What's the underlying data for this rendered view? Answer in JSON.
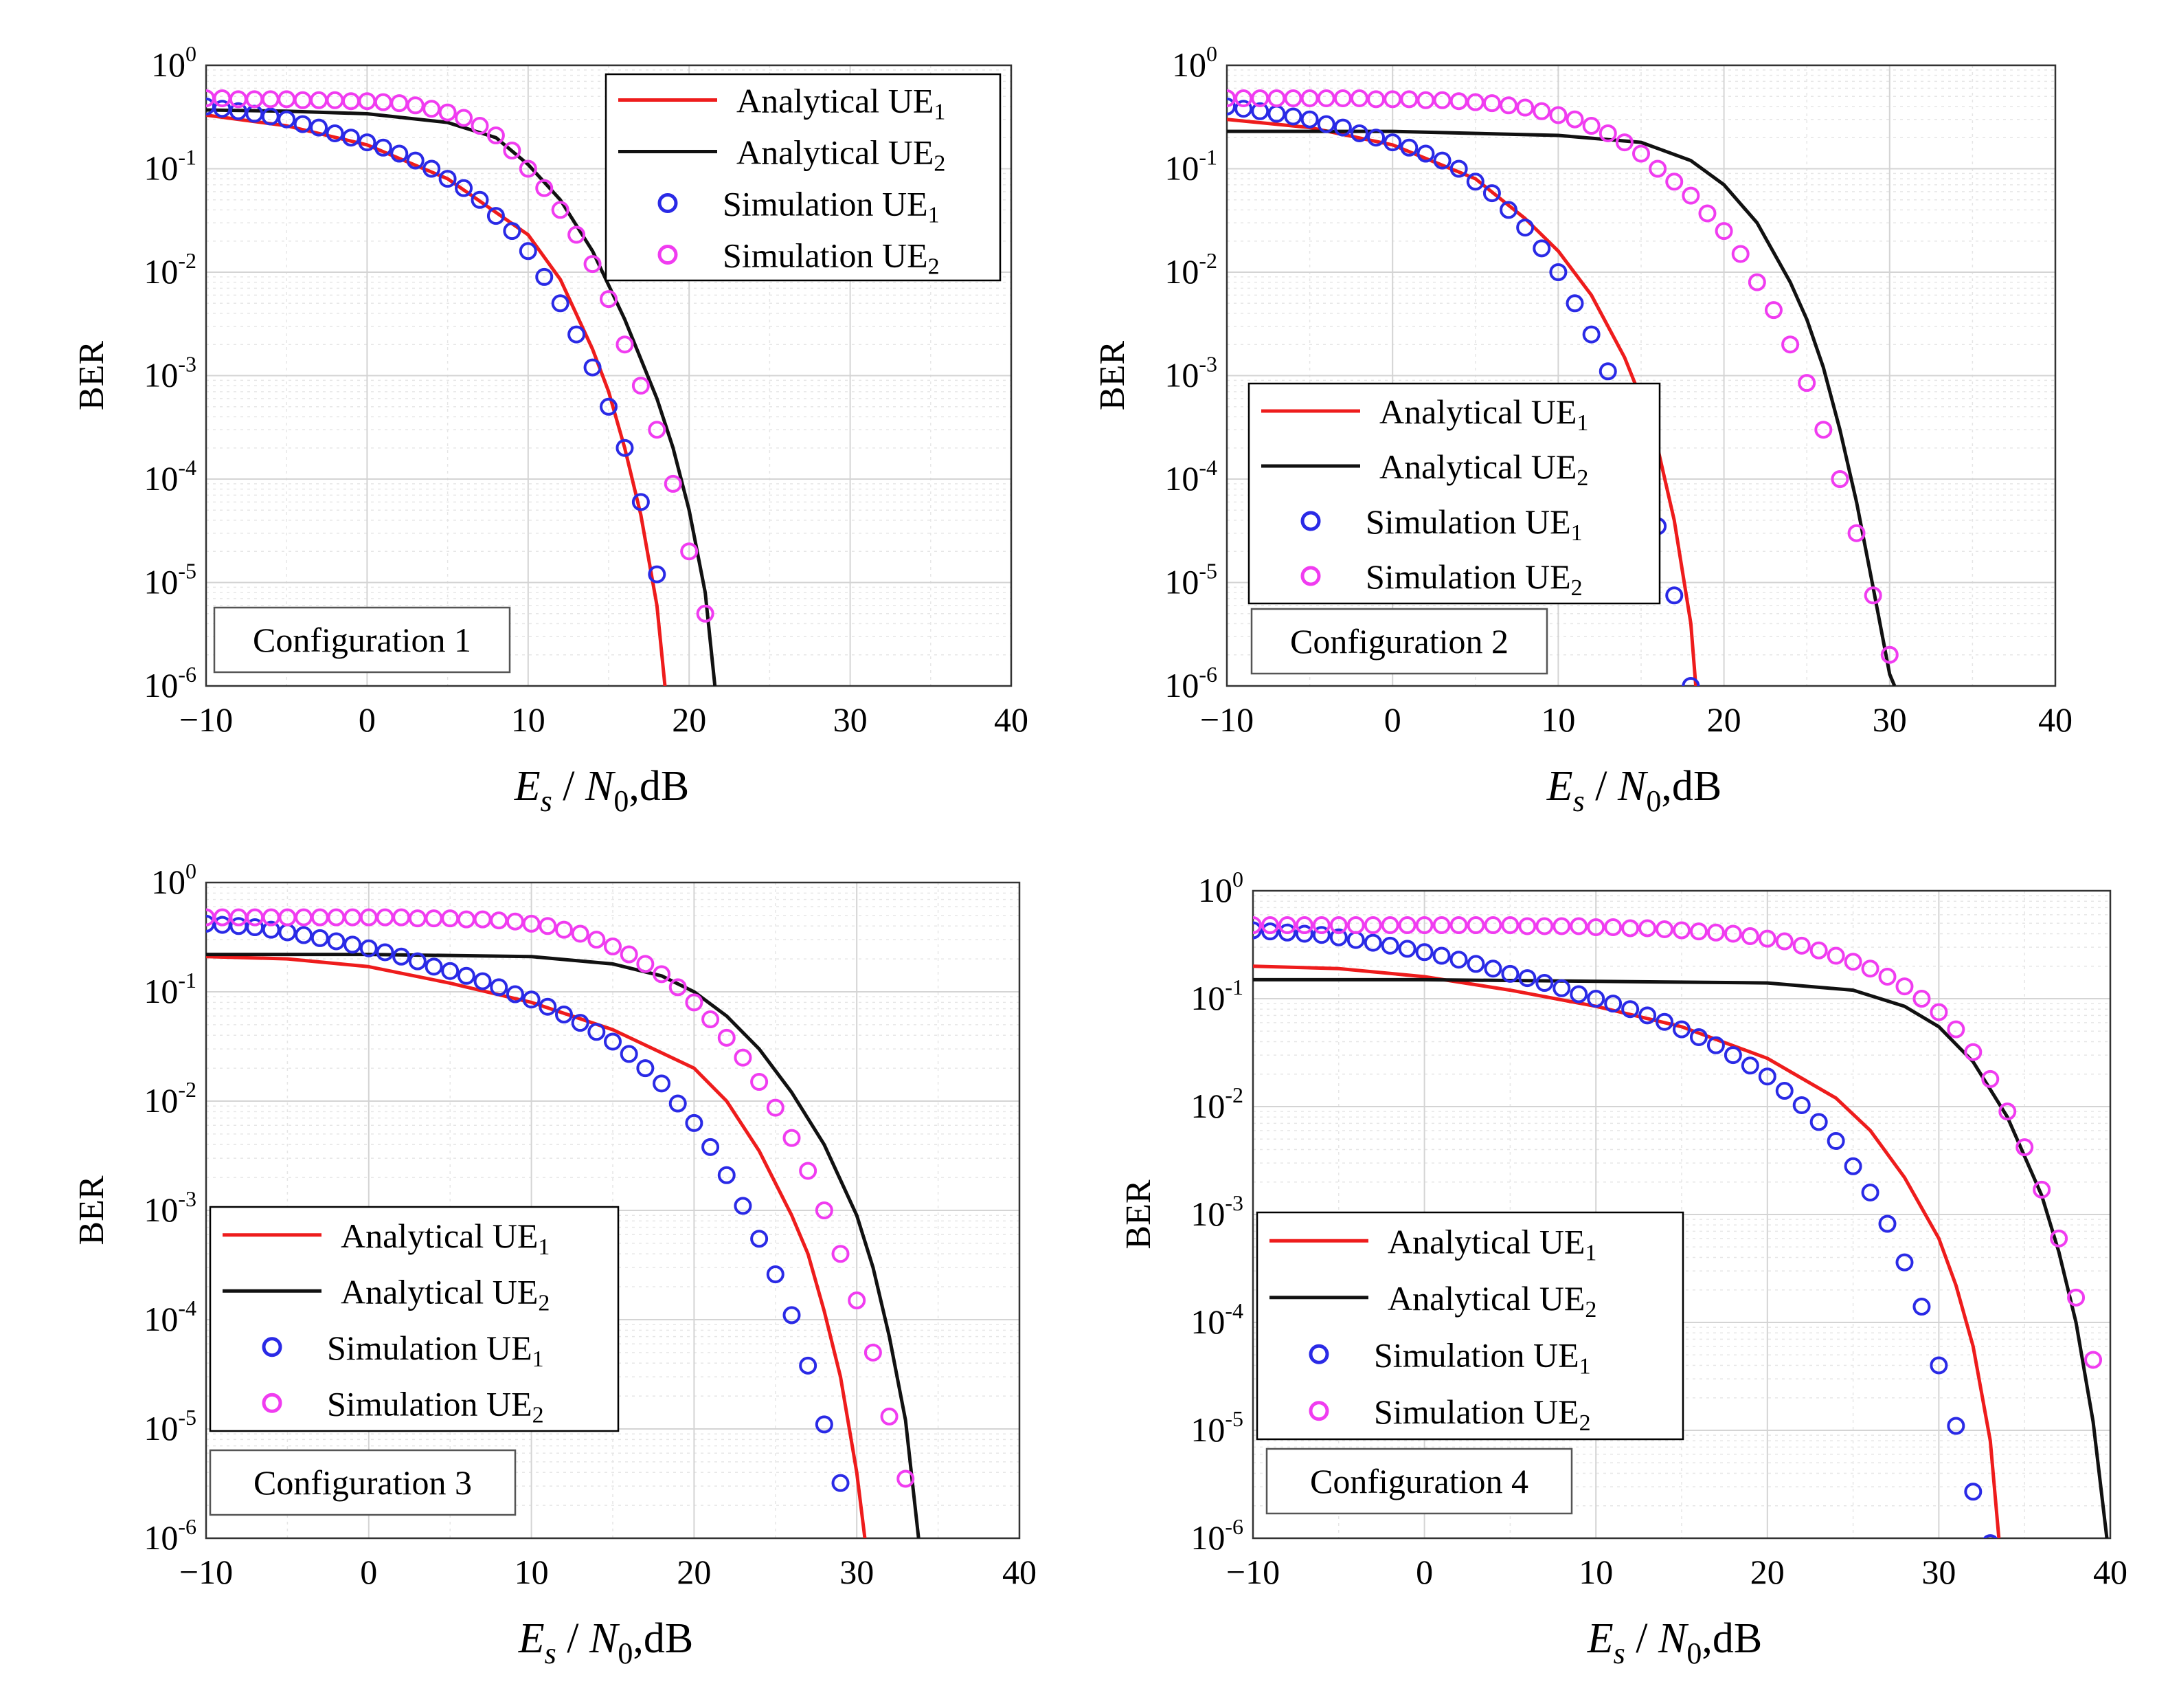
{
  "figure": {
    "background": "#ffffff"
  },
  "styles": {
    "analytical_ue1_color": "#ee1c1c",
    "analytical_ue2_color": "#111111",
    "simulation_ue1_color": "#2a2ae6",
    "simulation_ue2_color": "#f03cf0",
    "grid_color": "#d4d4d4",
    "minor_grid_color": "#e6e6e6"
  },
  "legend_labels": {
    "analytical_ue1": {
      "base": "Analytical UE",
      "sub": "1"
    },
    "analytical_ue2": {
      "base": "Analytical UE",
      "sub": "2"
    },
    "simulation_ue1": {
      "base": "Simulation UE",
      "sub": "1"
    },
    "simulation_ue2": {
      "base": "Simulation UE",
      "sub": "2"
    }
  },
  "axes_text": {
    "xlabel_main": "E",
    "xlabel_sub1": "s",
    "xlabel_slash": " / ",
    "xlabel_N": "N",
    "xlabel_sub2": "0",
    "xlabel_tail": ",dB",
    "ylabel": "BER",
    "x_tick_labels": [
      "−10",
      "0",
      "10",
      "20",
      "30",
      "40"
    ],
    "y_tick_base": "10",
    "y_tick_exponents": [
      "0",
      "-1",
      "-2",
      "-3",
      "-4",
      "-5",
      "-6"
    ]
  },
  "chart_data": [
    {
      "type": "line",
      "title": "Configuration 1",
      "xlabel": "Es / N0, dB",
      "ylabel": "BER",
      "yscale": "log",
      "xlim": [
        -10,
        40
      ],
      "ylim": [
        1e-06,
        1
      ],
      "xticks": [
        -10,
        0,
        10,
        20,
        30,
        40
      ],
      "legend_position": "top-right",
      "series": [
        {
          "name": "Analytical UE1",
          "kind": "line",
          "x": [
            -10,
            -5,
            0,
            5,
            10,
            12,
            14,
            15,
            16,
            17,
            18,
            18.5
          ],
          "y": [
            0.33,
            0.26,
            0.17,
            0.08,
            0.023,
            0.0085,
            0.0018,
            0.0007,
            0.0002,
            4.5e-05,
            6e-06,
            1e-06
          ]
        },
        {
          "name": "Analytical UE2",
          "kind": "line",
          "x": [
            -10,
            -5,
            0,
            5,
            8,
            10,
            12,
            14,
            16,
            18,
            19,
            20,
            21,
            21.6
          ],
          "y": [
            0.37,
            0.36,
            0.34,
            0.28,
            0.2,
            0.11,
            0.05,
            0.016,
            0.0035,
            0.0006,
            0.0002,
            5e-05,
            8e-06,
            1e-06
          ]
        },
        {
          "name": "Simulation UE1",
          "kind": "markers",
          "x": [
            -10,
            -9,
            -8,
            -7,
            -6,
            -5,
            -4,
            -3,
            -2,
            -1,
            0,
            1,
            2,
            3,
            4,
            5,
            6,
            7,
            8,
            9,
            10,
            11,
            12,
            13,
            14,
            15,
            16,
            17,
            18
          ],
          "y": [
            0.4,
            0.38,
            0.36,
            0.34,
            0.32,
            0.3,
            0.27,
            0.25,
            0.22,
            0.2,
            0.18,
            0.16,
            0.14,
            0.12,
            0.1,
            0.08,
            0.065,
            0.05,
            0.035,
            0.025,
            0.016,
            0.009,
            0.005,
            0.0025,
            0.0012,
            0.0005,
            0.0002,
            6e-05,
            1.2e-05
          ]
        },
        {
          "name": "Simulation UE2",
          "kind": "markers",
          "x": [
            -10,
            -9,
            -8,
            -7,
            -6,
            -5,
            -4,
            -3,
            -2,
            -1,
            0,
            1,
            2,
            3,
            4,
            5,
            6,
            7,
            8,
            9,
            10,
            11,
            12,
            13,
            14,
            15,
            16,
            17,
            18,
            19,
            20,
            21
          ],
          "y": [
            0.48,
            0.48,
            0.47,
            0.47,
            0.47,
            0.47,
            0.46,
            0.46,
            0.46,
            0.45,
            0.45,
            0.44,
            0.43,
            0.41,
            0.38,
            0.35,
            0.31,
            0.26,
            0.21,
            0.15,
            0.1,
            0.065,
            0.04,
            0.023,
            0.012,
            0.0055,
            0.002,
            0.0008,
            0.0003,
            9e-05,
            2e-05,
            5e-06
          ]
        }
      ]
    },
    {
      "type": "line",
      "title": "Configuration 2",
      "xlabel": "Es / N0, dB",
      "ylabel": "BER",
      "yscale": "log",
      "xlim": [
        -10,
        40
      ],
      "ylim": [
        1e-06,
        1
      ],
      "xticks": [
        -10,
        0,
        10,
        20,
        30,
        40
      ],
      "legend_position": "center-left",
      "series": [
        {
          "name": "Analytical UE1",
          "kind": "line",
          "x": [
            -10,
            -5,
            0,
            5,
            8,
            10,
            12,
            14,
            15,
            16,
            17,
            18,
            18.3
          ],
          "y": [
            0.3,
            0.25,
            0.17,
            0.08,
            0.033,
            0.016,
            0.006,
            0.0015,
            0.0006,
            0.0002,
            4e-05,
            4e-06,
            1e-06
          ]
        },
        {
          "name": "Analytical UE2",
          "kind": "line",
          "x": [
            -10,
            0,
            10,
            15,
            18,
            20,
            22,
            24,
            25,
            26,
            27,
            28,
            29,
            30,
            30.3
          ],
          "y": [
            0.23,
            0.23,
            0.21,
            0.18,
            0.12,
            0.07,
            0.03,
            0.008,
            0.0035,
            0.0012,
            0.0003,
            6e-05,
            9e-06,
            1.3e-06,
            1e-06
          ]
        },
        {
          "name": "Simulation UE1",
          "kind": "markers",
          "x": [
            -10,
            -9,
            -8,
            -7,
            -6,
            -5,
            -4,
            -3,
            -2,
            -1,
            0,
            1,
            2,
            3,
            4,
            5,
            6,
            7,
            8,
            9,
            10,
            11,
            12,
            13,
            14,
            15,
            16,
            17,
            18
          ],
          "y": [
            0.4,
            0.38,
            0.36,
            0.34,
            0.32,
            0.3,
            0.27,
            0.25,
            0.22,
            0.2,
            0.18,
            0.16,
            0.14,
            0.12,
            0.1,
            0.075,
            0.058,
            0.04,
            0.027,
            0.017,
            0.01,
            0.005,
            0.0025,
            0.0011,
            0.0004,
            0.00013,
            3.5e-05,
            7.5e-06,
            1e-06
          ]
        },
        {
          "name": "Simulation UE2",
          "kind": "markers",
          "x": [
            -10,
            -9,
            -8,
            -7,
            -6,
            -5,
            -4,
            -3,
            -2,
            -1,
            0,
            1,
            2,
            3,
            4,
            5,
            6,
            7,
            8,
            9,
            10,
            11,
            12,
            13,
            14,
            15,
            16,
            17,
            18,
            19,
            20,
            21,
            22,
            23,
            24,
            25,
            26,
            27,
            28,
            29,
            30
          ],
          "y": [
            0.48,
            0.48,
            0.48,
            0.48,
            0.48,
            0.48,
            0.48,
            0.48,
            0.48,
            0.47,
            0.47,
            0.47,
            0.46,
            0.46,
            0.45,
            0.44,
            0.43,
            0.41,
            0.39,
            0.36,
            0.33,
            0.3,
            0.26,
            0.22,
            0.18,
            0.14,
            0.1,
            0.075,
            0.055,
            0.037,
            0.025,
            0.015,
            0.008,
            0.0043,
            0.002,
            0.00085,
            0.0003,
            0.0001,
            3e-05,
            7.5e-06,
            2e-06
          ]
        }
      ]
    },
    {
      "type": "line",
      "title": "Configuration 3",
      "xlabel": "Es / N0, dB",
      "ylabel": "BER",
      "yscale": "log",
      "xlim": [
        -10,
        40
      ],
      "ylim": [
        1e-06,
        1
      ],
      "xticks": [
        -10,
        0,
        10,
        20,
        30,
        40
      ],
      "legend_position": "center-left",
      "series": [
        {
          "name": "Analytical UE1",
          "kind": "line",
          "x": [
            -10,
            -5,
            0,
            5,
            10,
            15,
            20,
            22,
            24,
            26,
            27,
            28,
            29,
            30,
            30.5
          ],
          "y": [
            0.21,
            0.2,
            0.17,
            0.12,
            0.08,
            0.045,
            0.02,
            0.01,
            0.0035,
            0.0009,
            0.0004,
            0.00012,
            3e-05,
            4e-06,
            1e-06
          ]
        },
        {
          "name": "Analytical UE2",
          "kind": "line",
          "x": [
            -10,
            0,
            10,
            15,
            18,
            20,
            22,
            24,
            26,
            28,
            30,
            31,
            32,
            33,
            33.8
          ],
          "y": [
            0.22,
            0.22,
            0.21,
            0.18,
            0.14,
            0.1,
            0.06,
            0.03,
            0.012,
            0.004,
            0.0009,
            0.0003,
            7e-05,
            1.2e-05,
            1e-06
          ]
        },
        {
          "name": "Simulation UE1",
          "kind": "markers",
          "x": [
            -10,
            -9,
            -8,
            -7,
            -6,
            -5,
            -4,
            -3,
            -2,
            -1,
            0,
            1,
            2,
            3,
            4,
            5,
            6,
            7,
            8,
            9,
            10,
            11,
            12,
            13,
            14,
            15,
            16,
            17,
            18,
            19,
            20,
            21,
            22,
            23,
            24,
            25,
            26,
            27,
            28,
            29,
            30
          ],
          "y": [
            0.42,
            0.41,
            0.4,
            0.39,
            0.37,
            0.35,
            0.33,
            0.31,
            0.29,
            0.27,
            0.25,
            0.23,
            0.21,
            0.19,
            0.17,
            0.155,
            0.14,
            0.125,
            0.11,
            0.095,
            0.085,
            0.073,
            0.062,
            0.052,
            0.043,
            0.035,
            0.027,
            0.02,
            0.0145,
            0.0095,
            0.0063,
            0.0038,
            0.0021,
            0.0011,
            0.00055,
            0.00026,
            0.00011,
            3.8e-05,
            1.1e-05,
            3.2e-06,
            8e-07
          ]
        },
        {
          "name": "Simulation UE2",
          "kind": "markers",
          "x": [
            -10,
            -9,
            -8,
            -7,
            -6,
            -5,
            -4,
            -3,
            -2,
            -1,
            0,
            1,
            2,
            3,
            4,
            5,
            6,
            7,
            8,
            9,
            10,
            11,
            12,
            13,
            14,
            15,
            16,
            17,
            18,
            19,
            20,
            21,
            22,
            23,
            24,
            25,
            26,
            27,
            28,
            29,
            30,
            31,
            32,
            33
          ],
          "y": [
            0.48,
            0.48,
            0.48,
            0.48,
            0.48,
            0.48,
            0.48,
            0.48,
            0.48,
            0.48,
            0.48,
            0.48,
            0.48,
            0.47,
            0.47,
            0.47,
            0.46,
            0.46,
            0.45,
            0.44,
            0.42,
            0.4,
            0.37,
            0.34,
            0.3,
            0.26,
            0.22,
            0.18,
            0.145,
            0.11,
            0.08,
            0.056,
            0.038,
            0.025,
            0.015,
            0.0087,
            0.0046,
            0.0023,
            0.001,
            0.0004,
            0.00015,
            5e-05,
            1.3e-05,
            3.5e-06
          ]
        }
      ]
    },
    {
      "type": "line",
      "title": "Configuration 4",
      "xlabel": "Es / N0, dB",
      "ylabel": "BER",
      "yscale": "log",
      "xlim": [
        -10,
        40
      ],
      "ylim": [
        1e-06,
        1
      ],
      "xticks": [
        -10,
        0,
        10,
        20,
        30,
        40
      ],
      "legend_position": "center-left",
      "series": [
        {
          "name": "Analytical UE1",
          "kind": "line",
          "x": [
            -10,
            -5,
            0,
            5,
            10,
            15,
            20,
            24,
            26,
            28,
            30,
            31,
            32,
            33,
            33.5
          ],
          "y": [
            0.2,
            0.19,
            0.16,
            0.12,
            0.085,
            0.055,
            0.028,
            0.012,
            0.006,
            0.0022,
            0.0006,
            0.00022,
            6e-05,
            8e-06,
            1e-06
          ]
        },
        {
          "name": "Analytical UE2",
          "kind": "line",
          "x": [
            -10,
            0,
            10,
            20,
            25,
            28,
            30,
            32,
            34,
            36,
            37,
            38,
            39,
            39.8
          ],
          "y": [
            0.15,
            0.15,
            0.145,
            0.14,
            0.12,
            0.085,
            0.055,
            0.026,
            0.008,
            0.0015,
            0.00045,
            0.0001,
            1.2e-05,
            1e-06
          ]
        },
        {
          "name": "Simulation UE1",
          "kind": "markers",
          "x": [
            -10,
            -9,
            -8,
            -7,
            -6,
            -5,
            -4,
            -3,
            -2,
            -1,
            0,
            1,
            2,
            3,
            4,
            5,
            6,
            7,
            8,
            9,
            10,
            11,
            12,
            13,
            14,
            15,
            16,
            17,
            18,
            19,
            20,
            21,
            22,
            23,
            24,
            25,
            26,
            27,
            28,
            29,
            30,
            31,
            32,
            33
          ],
          "y": [
            0.43,
            0.42,
            0.41,
            0.4,
            0.39,
            0.37,
            0.35,
            0.33,
            0.31,
            0.29,
            0.27,
            0.25,
            0.23,
            0.21,
            0.19,
            0.17,
            0.155,
            0.14,
            0.125,
            0.11,
            0.1,
            0.09,
            0.08,
            0.07,
            0.061,
            0.052,
            0.044,
            0.037,
            0.03,
            0.024,
            0.019,
            0.014,
            0.0103,
            0.0072,
            0.0048,
            0.0028,
            0.0016,
            0.00082,
            0.00036,
            0.00014,
            4e-05,
            1.1e-05,
            2.7e-06,
            9e-07
          ]
        },
        {
          "name": "Simulation UE2",
          "kind": "markers",
          "x": [
            -10,
            -9,
            -8,
            -7,
            -6,
            -5,
            -4,
            -3,
            -2,
            -1,
            0,
            1,
            2,
            3,
            4,
            5,
            6,
            7,
            8,
            9,
            10,
            11,
            12,
            13,
            14,
            15,
            16,
            17,
            18,
            19,
            20,
            21,
            22,
            23,
            24,
            25,
            26,
            27,
            28,
            29,
            30,
            31,
            32,
            33,
            34,
            35,
            36,
            37,
            38,
            39
          ],
          "y": [
            0.48,
            0.48,
            0.48,
            0.48,
            0.48,
            0.48,
            0.48,
            0.48,
            0.48,
            0.48,
            0.48,
            0.48,
            0.48,
            0.48,
            0.48,
            0.48,
            0.47,
            0.47,
            0.47,
            0.47,
            0.46,
            0.46,
            0.45,
            0.45,
            0.44,
            0.43,
            0.42,
            0.41,
            0.4,
            0.38,
            0.36,
            0.34,
            0.31,
            0.28,
            0.25,
            0.22,
            0.19,
            0.16,
            0.13,
            0.1,
            0.075,
            0.052,
            0.032,
            0.018,
            0.009,
            0.0042,
            0.0017,
            0.0006,
            0.00017,
            4.5e-05
          ]
        }
      ]
    }
  ]
}
